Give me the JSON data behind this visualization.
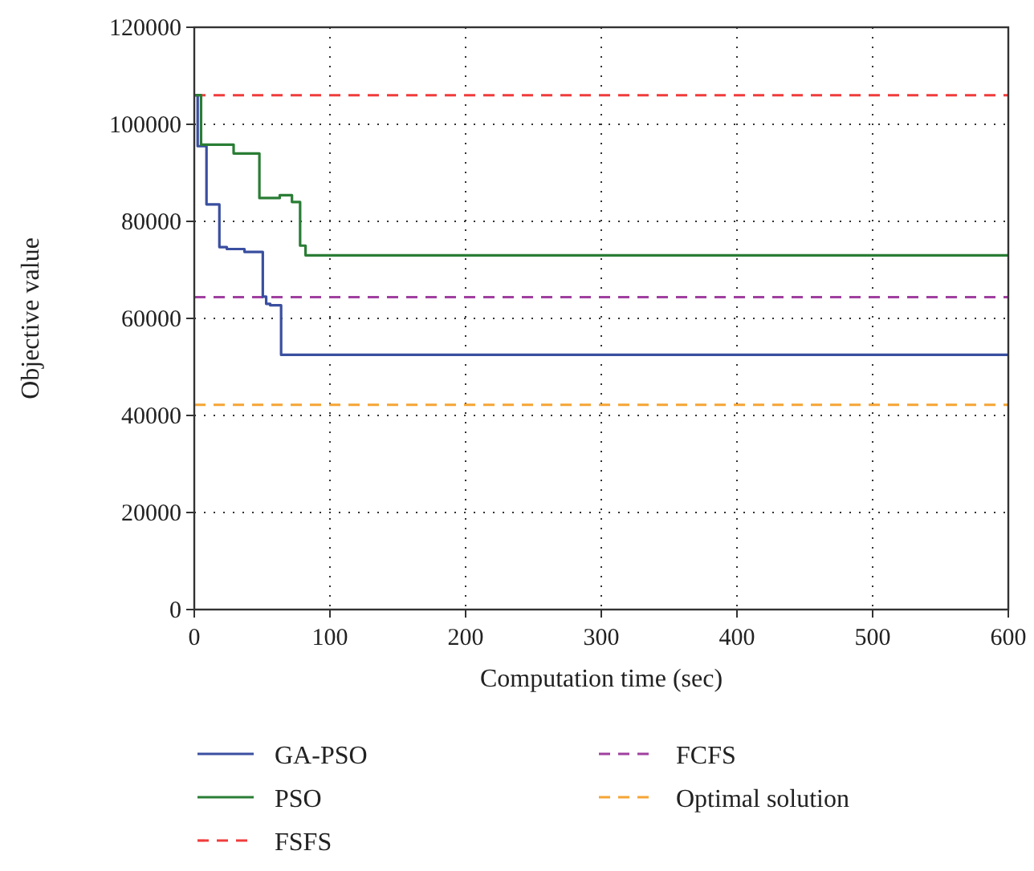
{
  "chart_data": {
    "type": "step",
    "xlabel": "Computation time (sec)",
    "ylabel": "Objective value",
    "xlim": [
      0,
      600
    ],
    "xticks": [
      0,
      100,
      200,
      300,
      400,
      500,
      600
    ],
    "ylim": [
      0,
      120000
    ],
    "yticks": [
      0,
      20000,
      40000,
      60000,
      80000,
      100000,
      120000
    ],
    "grid": true,
    "legend": "bottom",
    "line_style": "solid",
    "series": [
      {
        "name": "GA-PSO",
        "color": "#3a4fa0",
        "x": [
          0,
          2.5,
          9,
          18.5,
          24,
          37,
          50.5,
          53,
          56,
          64,
          600
        ],
        "values": [
          106000,
          95500,
          83500,
          74700,
          74300,
          73700,
          64500,
          63000,
          62700,
          52500,
          52500
        ]
      },
      {
        "name": "PSO",
        "color": "#2a7d35",
        "x": [
          0,
          5,
          29,
          48,
          63,
          72,
          78,
          82,
          600
        ],
        "values": [
          106000,
          95800,
          94000,
          84800,
          85400,
          84000,
          75000,
          73000,
          73000
        ]
      }
    ],
    "ref_lines": [
      {
        "axis": "y",
        "value": 106000,
        "label": "FSFS",
        "color": "#f03c3c",
        "line_style": "dashed"
      },
      {
        "axis": "y",
        "value": 64400,
        "label": "FCFS",
        "color": "#a040a0",
        "line_style": "dashed"
      },
      {
        "axis": "y",
        "value": 42200,
        "label": "Optimal solution",
        "color": "#f5a535",
        "line_style": "dashed"
      }
    ]
  }
}
